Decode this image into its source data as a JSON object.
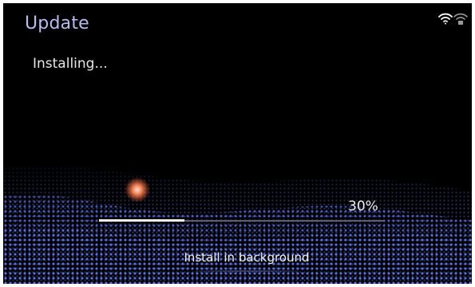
{
  "header": {
    "title": "Update"
  },
  "status": {
    "text": "Installing..."
  },
  "status_bar": {
    "icons": [
      "wifi-icon",
      "wifi-secure-icon"
    ]
  },
  "progress": {
    "percent_label": "30%",
    "value": 0.3
  },
  "actions": {
    "background_label": "Install in background"
  },
  "colors": {
    "accent": "#b7bdf4",
    "background": "#000000",
    "wave": "#4a5fd0",
    "glow": "#ff7a55"
  }
}
